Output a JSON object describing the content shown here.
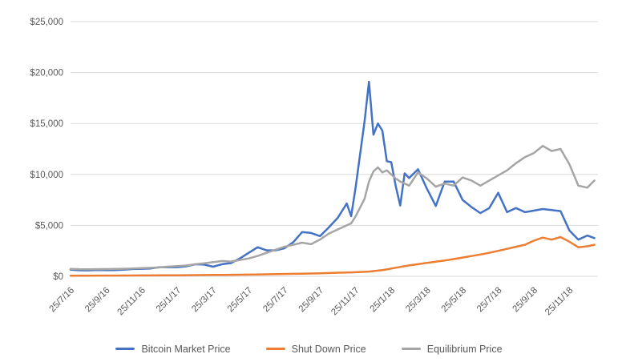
{
  "chart_data": {
    "type": "line",
    "title": "",
    "xlabel": "",
    "ylabel": "",
    "x_unit": "months since 25/7/16 (estimated from axis)",
    "ylim": [
      0,
      25000
    ],
    "grid": true,
    "legend_position": "bottom",
    "y_ticks": [
      0,
      5000,
      10000,
      15000,
      20000,
      25000
    ],
    "y_tick_labels": [
      "$0",
      "$5,000",
      "$10,000",
      "$15,000",
      "$20,000",
      "$25,000"
    ],
    "x_tick_positions": [
      0,
      2,
      4,
      6,
      8,
      10,
      12,
      14,
      16,
      18,
      20,
      22,
      24,
      26,
      28
    ],
    "x_tick_labels": [
      "25/7/16",
      "25/9/16",
      "25/11/16",
      "25/1/17",
      "25/3/17",
      "25/5/17",
      "25/7/17",
      "25/9/17",
      "25/11/17",
      "25/1/18",
      "25/3/18",
      "25/5/18",
      "25/7/18",
      "25/9/18",
      "25/11/18"
    ],
    "x_max": 29.6,
    "x": [
      0,
      0.5,
      1,
      1.5,
      2,
      2.5,
      3,
      3.5,
      4,
      4.5,
      5,
      5.5,
      6,
      6.5,
      7,
      7.5,
      8,
      8.5,
      9,
      9.5,
      10,
      10.5,
      11,
      11.5,
      12,
      12.5,
      13,
      13.5,
      14,
      14.5,
      15,
      15.5,
      15.75,
      16,
      16.5,
      16.75,
      17,
      17.25,
      17.5,
      17.75,
      18,
      18.25,
      18.5,
      18.75,
      19,
      19.5,
      20,
      20.5,
      21,
      21.5,
      22,
      22.5,
      23,
      23.5,
      24,
      24.5,
      25,
      25.5,
      26,
      26.5,
      27,
      27.5,
      28,
      28.5,
      29,
      29.4
    ],
    "series": [
      {
        "name": "Bitcoin Market Price",
        "color": "#4472C4",
        "values": [
          655,
          590,
          580,
          625,
          600,
          615,
          650,
          715,
          740,
          770,
          895,
          900,
          895,
          985,
          1180,
          1150,
          940,
          1190,
          1300,
          1750,
          2300,
          2850,
          2550,
          2550,
          2750,
          3350,
          4350,
          4250,
          3950,
          4800,
          5750,
          7150,
          5900,
          8750,
          15200,
          19100,
          13900,
          15000,
          14300,
          11300,
          11200,
          8850,
          6950,
          10100,
          9650,
          10500,
          8600,
          6900,
          9300,
          9300,
          7500,
          6800,
          6200,
          6700,
          8200,
          6300,
          6700,
          6300,
          6450,
          6600,
          6500,
          6400,
          4500,
          3600,
          4000,
          3750
        ]
      },
      {
        "name": "Shut Down Price",
        "color": "#ED7D31",
        "values": [
          60,
          62,
          65,
          67,
          70,
          72,
          75,
          80,
          85,
          90,
          95,
          100,
          105,
          110,
          118,
          125,
          132,
          140,
          148,
          158,
          168,
          180,
          195,
          210,
          225,
          240,
          258,
          278,
          300,
          325,
          350,
          372,
          383,
          400,
          440,
          465,
          510,
          560,
          615,
          680,
          760,
          840,
          920,
          1000,
          1070,
          1190,
          1320,
          1430,
          1550,
          1690,
          1840,
          1990,
          2140,
          2300,
          2500,
          2700,
          2900,
          3100,
          3500,
          3800,
          3600,
          3850,
          3400,
          2850,
          2950,
          3100
        ]
      },
      {
        "name": "Equilibrium Price",
        "color": "#A5A5A5",
        "values": [
          730,
          700,
          690,
          700,
          705,
          720,
          740,
          770,
          800,
          830,
          870,
          950,
          1000,
          1060,
          1180,
          1280,
          1380,
          1500,
          1450,
          1600,
          1750,
          2000,
          2300,
          2600,
          2900,
          3100,
          3300,
          3150,
          3600,
          4200,
          4600,
          5000,
          5200,
          5900,
          7600,
          9300,
          10300,
          10700,
          10200,
          10400,
          10000,
          9600,
          9300,
          9100,
          8900,
          10200,
          9600,
          8800,
          9100,
          8900,
          9700,
          9400,
          8900,
          9400,
          9900,
          10400,
          11100,
          11700,
          12100,
          12800,
          12300,
          12500,
          11000,
          8900,
          8700,
          9400
        ]
      }
    ]
  },
  "colors": {
    "axis_text": "#595959",
    "gridline": "#D9D9D9",
    "background": "#FFFFFF"
  }
}
